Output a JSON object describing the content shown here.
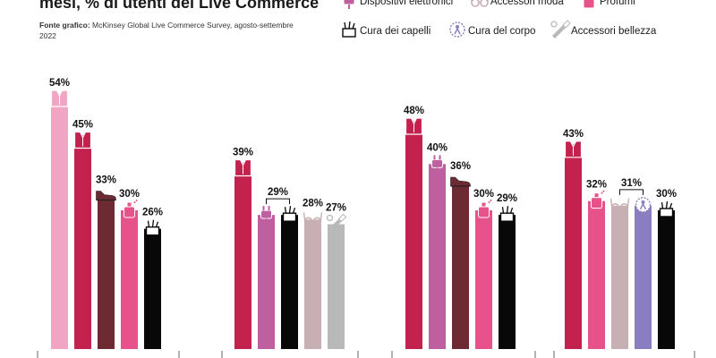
{
  "title": "mesi, % di utenti del Live Commerce",
  "source": {
    "label": "Fonte grafico:",
    "text": "McKinsey Global Live Commerce Survey, agosto-settembre 2022"
  },
  "legend": [
    {
      "key": "elettronica",
      "label": "Dispositivi elettronici"
    },
    {
      "key": "moda",
      "label": "Accessori moda"
    },
    {
      "key": "profumi",
      "label": "Profumi"
    },
    {
      "key": "capelli",
      "label": "Cura dei capelli"
    },
    {
      "key": "corpo",
      "label": "Cura del corpo"
    },
    {
      "key": "bellezza",
      "label": "Accessori bellezza"
    }
  ],
  "colors": {
    "abbigliamento": "#c3224f",
    "scarpe": "#6e2a33",
    "elettronica": "#be5fa0",
    "moda": "#c8afb4",
    "profumi": "#e8528a",
    "capelli": "#080808",
    "corpo": "#8a7ec0",
    "bellezza": "#b9b9b9",
    "first": "#f0a6c3"
  },
  "chart_data": {
    "type": "bar",
    "ylim": [
      0,
      60
    ],
    "groups": [
      {
        "bars": [
          {
            "key": "first",
            "value": 54,
            "label": "54%",
            "icon": "shirt-icon"
          },
          {
            "key": "abbigliamento",
            "value": 45,
            "label": "45%",
            "icon": "shirt-icon"
          },
          {
            "key": "scarpe",
            "value": 33,
            "label": "33%",
            "icon": "shoe-icon"
          },
          {
            "key": "profumi",
            "value": 30,
            "label": "30%",
            "icon": "perfume-icon"
          },
          {
            "key": "capelli",
            "value": 26,
            "label": "26%",
            "icon": "hair-icon"
          }
        ]
      },
      {
        "bars": [
          {
            "key": "abbigliamento",
            "value": 39,
            "label": "39%",
            "icon": "shirt-icon"
          },
          {
            "key": "elettronica",
            "value": 29,
            "label": "",
            "icon": "plug-icon"
          },
          {
            "key": "capelli",
            "value": 29,
            "label": "",
            "icon": "hair-icon"
          },
          {
            "key": "moda",
            "value": 28,
            "label": "28%",
            "icon": "glasses-icon"
          },
          {
            "key": "bellezza",
            "value": 27,
            "label": "27%",
            "icon": "brush-icon"
          }
        ],
        "brackets": [
          {
            "from": 1,
            "to": 2,
            "label": "29%"
          }
        ]
      },
      {
        "bars": [
          {
            "key": "abbigliamento",
            "value": 48,
            "label": "48%",
            "icon": "shirt-icon"
          },
          {
            "key": "elettronica",
            "value": 40,
            "label": "40%",
            "icon": "plug-icon"
          },
          {
            "key": "scarpe",
            "value": 36,
            "label": "36%",
            "icon": "shoe-icon"
          },
          {
            "key": "profumi",
            "value": 30,
            "label": "30%",
            "icon": "perfume-icon"
          },
          {
            "key": "capelli",
            "value": 29,
            "label": "29%",
            "icon": "hair-icon"
          }
        ]
      },
      {
        "bars": [
          {
            "key": "abbigliamento",
            "value": 43,
            "label": "43%",
            "icon": "shirt-icon"
          },
          {
            "key": "profumi",
            "value": 32,
            "label": "32%",
            "icon": "perfume-icon"
          },
          {
            "key": "moda",
            "value": 31,
            "label": "",
            "icon": "glasses-icon"
          },
          {
            "key": "corpo",
            "value": 31,
            "label": "",
            "icon": "body-care-icon"
          },
          {
            "key": "capelli",
            "value": 30,
            "label": "30%",
            "icon": "hair-icon"
          }
        ],
        "brackets": [
          {
            "from": 2,
            "to": 3,
            "label": "31%"
          }
        ]
      }
    ]
  }
}
